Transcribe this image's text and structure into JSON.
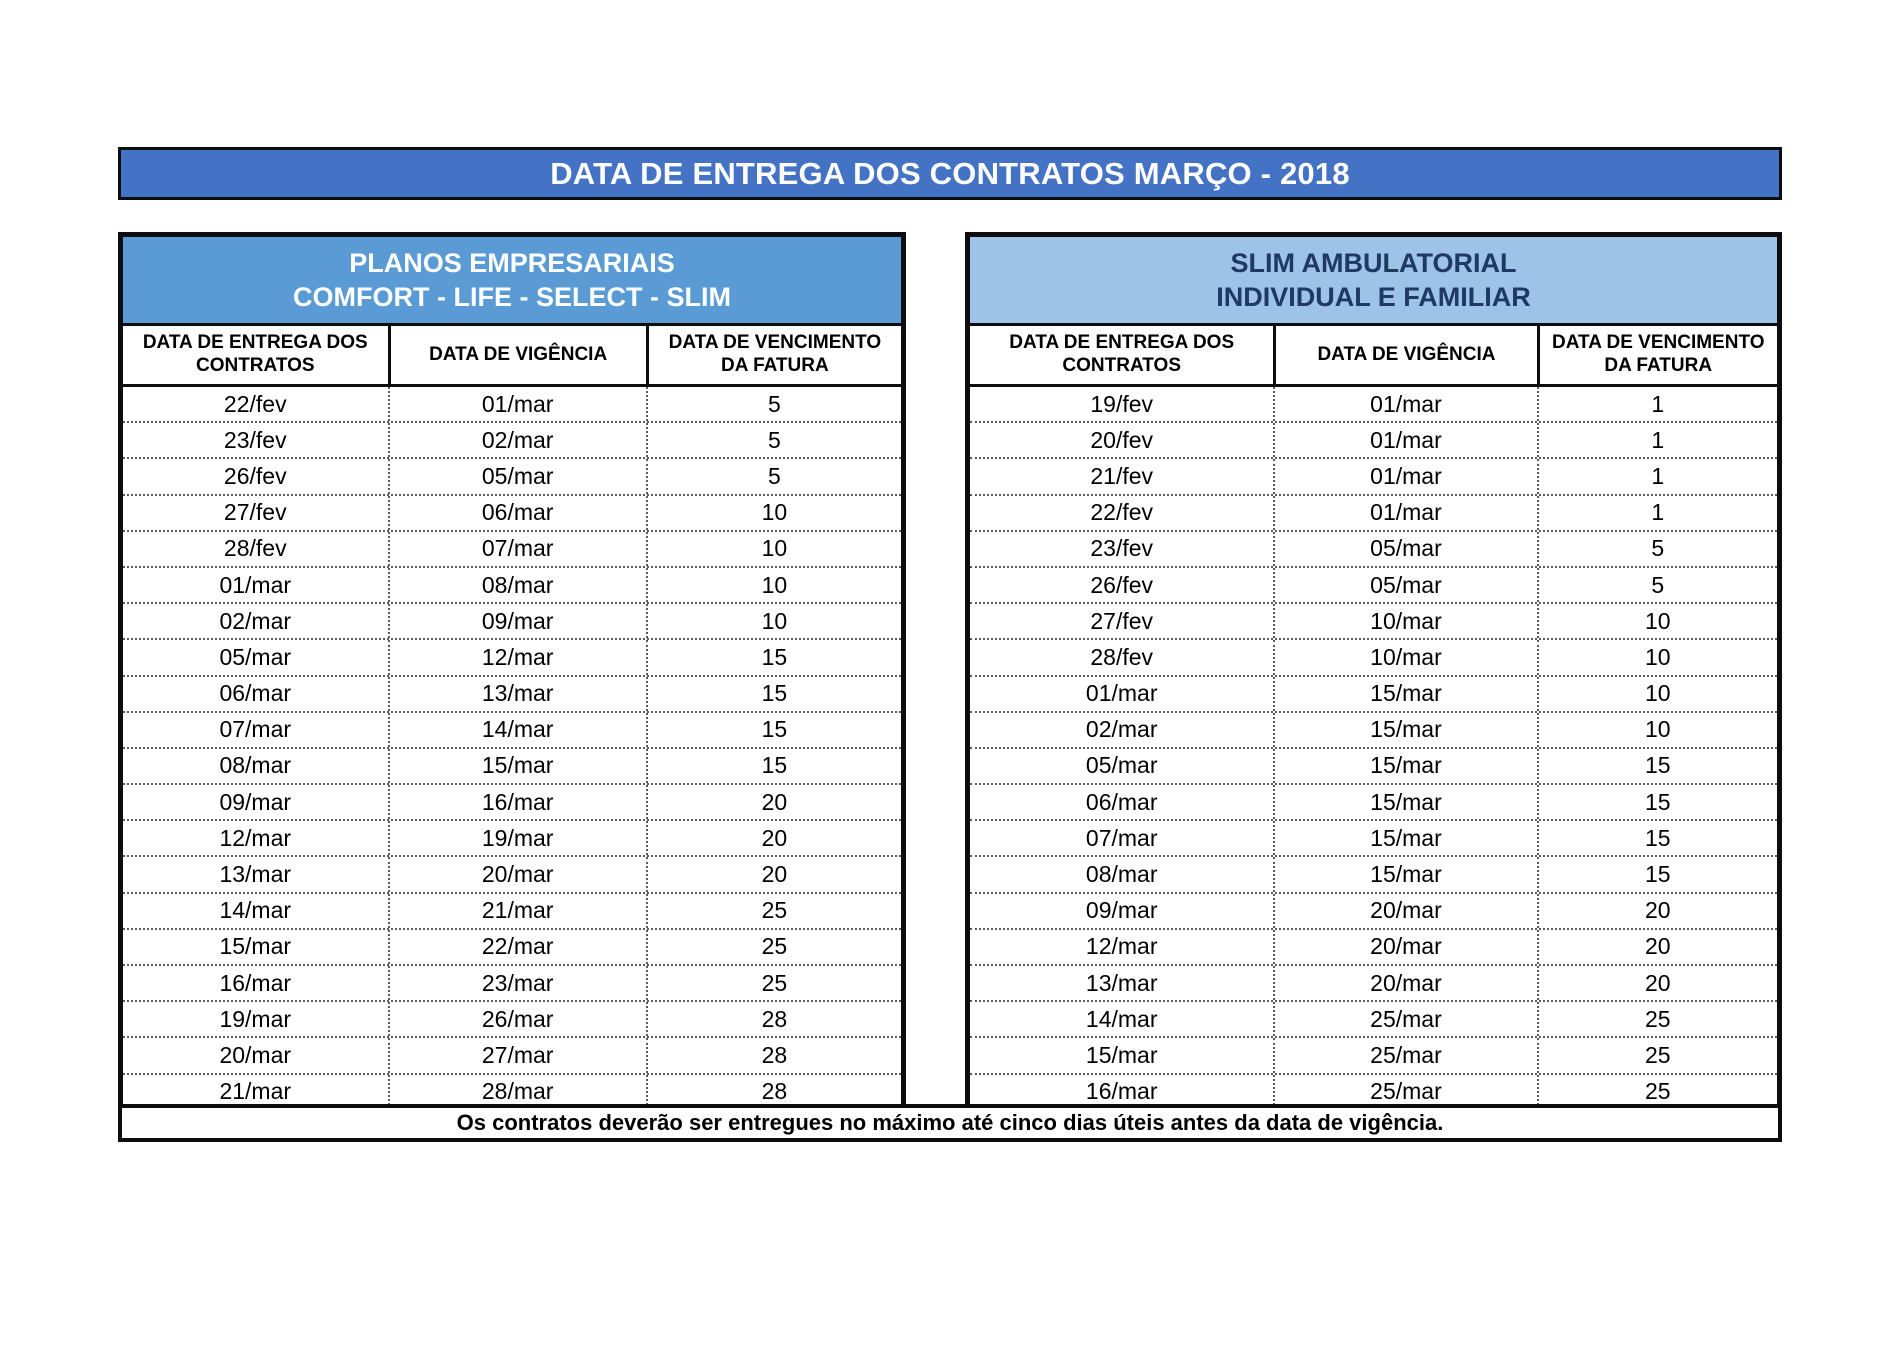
{
  "page": {
    "title": "DATA DE ENTREGA DOS CONTRATOS MARÇO - 2018",
    "footer_note": "Os contratos deverão ser entregues no máximo até cinco dias úteis antes da data de vigência."
  },
  "colors": {
    "title_bg": "#4472C4",
    "title_text": "#FFFFFF",
    "left_header_bg": "#5B9BD5",
    "left_header_text": "#FDFEFF",
    "right_header_bg": "#9DC3E6",
    "right_header_text": "#1F3864",
    "border_black": "#0D0D0D"
  },
  "left_table": {
    "title_line1": "PLANOS EMPRESARIAIS",
    "title_line2": "COMFORT - LIFE  - SELECT - SLIM",
    "columns": [
      "DATA DE ENTREGA DOS CONTRATOS",
      "DATA DE VIGÊNCIA",
      "DATA DE VENCIMENTO DA FATURA"
    ],
    "rows": [
      [
        "22/fev",
        "01/mar",
        "5"
      ],
      [
        "23/fev",
        "02/mar",
        "5"
      ],
      [
        "26/fev",
        "05/mar",
        "5"
      ],
      [
        "27/fev",
        "06/mar",
        "10"
      ],
      [
        "28/fev",
        "07/mar",
        "10"
      ],
      [
        "01/mar",
        "08/mar",
        "10"
      ],
      [
        "02/mar",
        "09/mar",
        "10"
      ],
      [
        "05/mar",
        "12/mar",
        "15"
      ],
      [
        "06/mar",
        "13/mar",
        "15"
      ],
      [
        "07/mar",
        "14/mar",
        "15"
      ],
      [
        "08/mar",
        "15/mar",
        "15"
      ],
      [
        "09/mar",
        "16/mar",
        "20"
      ],
      [
        "12/mar",
        "19/mar",
        "20"
      ],
      [
        "13/mar",
        "20/mar",
        "20"
      ],
      [
        "14/mar",
        "21/mar",
        "25"
      ],
      [
        "15/mar",
        "22/mar",
        "25"
      ],
      [
        "16/mar",
        "23/mar",
        "25"
      ],
      [
        "19/mar",
        "26/mar",
        "28"
      ],
      [
        "20/mar",
        "27/mar",
        "28"
      ],
      [
        "21/mar",
        "28/mar",
        "28"
      ]
    ]
  },
  "right_table": {
    "title_line1": "SLIM AMBULATORIAL",
    "title_line2": "INDIVIDUAL E FAMILIAR",
    "columns": [
      "DATA DE ENTREGA DOS CONTRATOS",
      "DATA DE VIGÊNCIA",
      "DATA DE VENCIMENTO DA FATURA"
    ],
    "rows": [
      [
        "19/fev",
        "01/mar",
        "1"
      ],
      [
        "20/fev",
        "01/mar",
        "1"
      ],
      [
        "21/fev",
        "01/mar",
        "1"
      ],
      [
        "22/fev",
        "01/mar",
        "1"
      ],
      [
        "23/fev",
        "05/mar",
        "5"
      ],
      [
        "26/fev",
        "05/mar",
        "5"
      ],
      [
        "27/fev",
        "10/mar",
        "10"
      ],
      [
        "28/fev",
        "10/mar",
        "10"
      ],
      [
        "01/mar",
        "15/mar",
        "10"
      ],
      [
        "02/mar",
        "15/mar",
        "10"
      ],
      [
        "05/mar",
        "15/mar",
        "15"
      ],
      [
        "06/mar",
        "15/mar",
        "15"
      ],
      [
        "07/mar",
        "15/mar",
        "15"
      ],
      [
        "08/mar",
        "15/mar",
        "15"
      ],
      [
        "09/mar",
        "20/mar",
        "20"
      ],
      [
        "12/mar",
        "20/mar",
        "20"
      ],
      [
        "13/mar",
        "20/mar",
        "20"
      ],
      [
        "14/mar",
        "25/mar",
        "25"
      ],
      [
        "15/mar",
        "25/mar",
        "25"
      ],
      [
        "16/mar",
        "25/mar",
        "25"
      ]
    ]
  }
}
